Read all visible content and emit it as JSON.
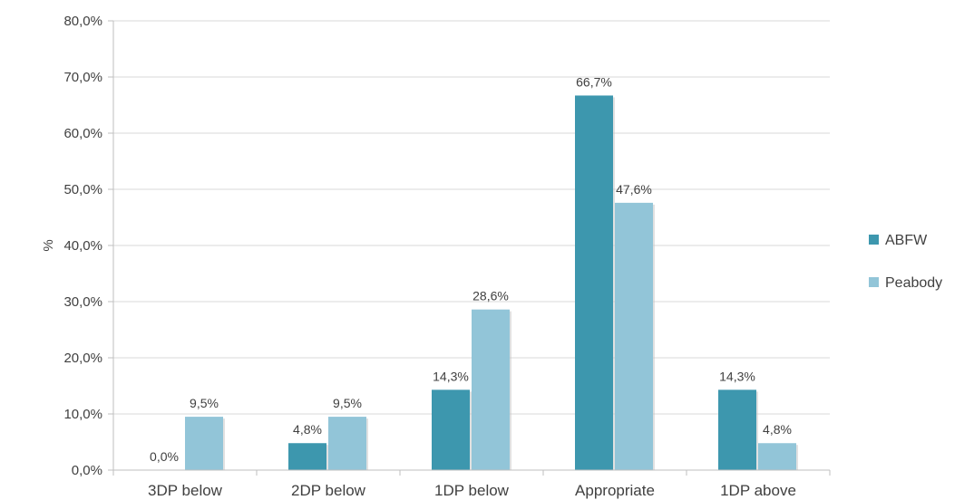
{
  "chart_data": {
    "type": "bar",
    "title": "",
    "xlabel": "",
    "ylabel": "%",
    "ylim": [
      0,
      80
    ],
    "y_ticks": [
      "0,0%",
      "10,0%",
      "20,0%",
      "30,0%",
      "40,0%",
      "50,0%",
      "60,0%",
      "70,0%",
      "80,0%"
    ],
    "categories": [
      "3DP below",
      "2DP below",
      "1DP below",
      "Appropriate",
      "1DP above"
    ],
    "series": [
      {
        "name": "ABFW",
        "color": "#3d97ae",
        "values": [
          0.0,
          4.8,
          14.3,
          66.7,
          14.3
        ],
        "labels": [
          "0,0%",
          "4,8%",
          "14,3%",
          "66,7%",
          "14,3%"
        ]
      },
      {
        "name": "Peabody",
        "color": "#92c5d8",
        "values": [
          9.5,
          9.5,
          28.6,
          47.6,
          4.8
        ],
        "labels": [
          "9,5%",
          "9,5%",
          "28,6%",
          "47,6%",
          "4,8%"
        ]
      }
    ],
    "grid": true,
    "legend_position": "right"
  }
}
